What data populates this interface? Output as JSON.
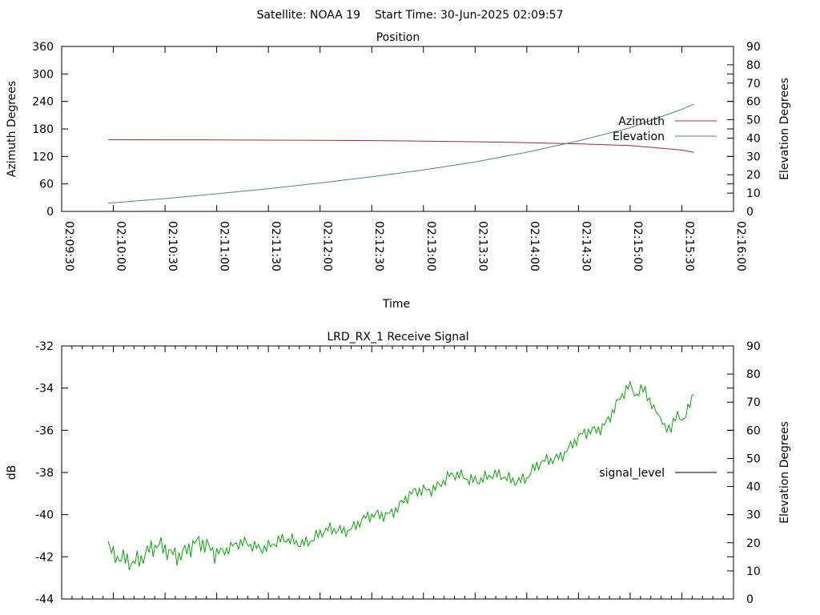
{
  "header": {
    "title": "Satellite: NOAA 19    Start Time: 30-Jun-2025 02:09:57"
  },
  "chart_data": [
    {
      "type": "line",
      "title": "Position",
      "xlabel": "Time",
      "ylabel": "Azimuth Degrees",
      "y2label": "Elevation Degrees",
      "xlim": [
        "02:09:30",
        "02:16:00"
      ],
      "ylim": [
        0,
        360
      ],
      "y2lim": [
        0,
        90
      ],
      "x_ticks": [
        "02:09:30",
        "02:10:00",
        "02:10:30",
        "02:11:00",
        "02:11:30",
        "02:12:00",
        "02:12:30",
        "02:13:00",
        "02:13:30",
        "02:14:00",
        "02:14:30",
        "02:15:00",
        "02:15:30",
        "02:16:00"
      ],
      "y_ticks": [
        0,
        60,
        120,
        180,
        240,
        300,
        360
      ],
      "y2_ticks": [
        0,
        10,
        20,
        30,
        40,
        50,
        60,
        70,
        80,
        90
      ],
      "grid": false,
      "legend": "right",
      "series": [
        {
          "name": "Azimuth",
          "axis": "y",
          "color": "#a52a2a",
          "x": [
            "02:09:57",
            "02:10:30",
            "02:11:00",
            "02:11:30",
            "02:12:00",
            "02:12:30",
            "02:13:00",
            "02:13:30",
            "02:14:00",
            "02:14:30",
            "02:15:00",
            "02:15:30",
            "02:15:37"
          ],
          "y": [
            156.5,
            156.3,
            156.0,
            155.6,
            155.1,
            154.4,
            153.4,
            152.0,
            150.2,
            147.5,
            143.6,
            133.8,
            129.0
          ]
        },
        {
          "name": "Elevation",
          "axis": "y2",
          "color": "#4682b4",
          "x": [
            "02:09:57",
            "02:10:30",
            "02:11:00",
            "02:11:30",
            "02:12:00",
            "02:12:30",
            "02:13:00",
            "02:13:30",
            "02:14:00",
            "02:14:30",
            "02:15:00",
            "02:15:30",
            "02:15:37"
          ],
          "y": [
            4.5,
            7.0,
            9.6,
            12.4,
            15.5,
            18.9,
            22.6,
            27.0,
            32.3,
            38.5,
            45.6,
            55.7,
            58.5
          ]
        }
      ]
    },
    {
      "type": "line",
      "title": "LRD_RX_1 Receive Signal",
      "xlabel": "",
      "ylabel": "dB",
      "y2label": "Elevation Degrees",
      "xlim": [
        "02:09:30",
        "02:16:00"
      ],
      "ylim": [
        -44,
        -32
      ],
      "y2lim": [
        0,
        90
      ],
      "y_ticks": [
        -44,
        -42,
        -40,
        -38,
        -36,
        -34,
        -32
      ],
      "y2_ticks": [
        0,
        10,
        20,
        30,
        40,
        50,
        60,
        70,
        80,
        90
      ],
      "grid": false,
      "legend": "right",
      "series": [
        {
          "name": "signal_level",
          "axis": "y",
          "color": "#00aa00",
          "x": [
            "02:09:57",
            "02:10:00",
            "02:10:15",
            "02:10:30",
            "02:10:45",
            "02:11:00",
            "02:11:15",
            "02:11:30",
            "02:11:45",
            "02:12:00",
            "02:12:15",
            "02:12:30",
            "02:12:45",
            "02:13:00",
            "02:13:15",
            "02:13:30",
            "02:13:45",
            "02:14:00",
            "02:14:15",
            "02:14:30",
            "02:14:45",
            "02:15:00",
            "02:15:10",
            "02:15:20",
            "02:15:30",
            "02:15:37"
          ],
          "y": [
            -41.4,
            -42.3,
            -41.9,
            -41.7,
            -41.6,
            -41.6,
            -41.5,
            -41.4,
            -41.3,
            -41.0,
            -40.6,
            -40.2,
            -39.6,
            -38.8,
            -38.3,
            -38.2,
            -38.3,
            -38.2,
            -37.3,
            -36.5,
            -35.6,
            -34.0,
            -34.3,
            -35.9,
            -35.4,
            -34.3
          ]
        }
      ]
    }
  ]
}
